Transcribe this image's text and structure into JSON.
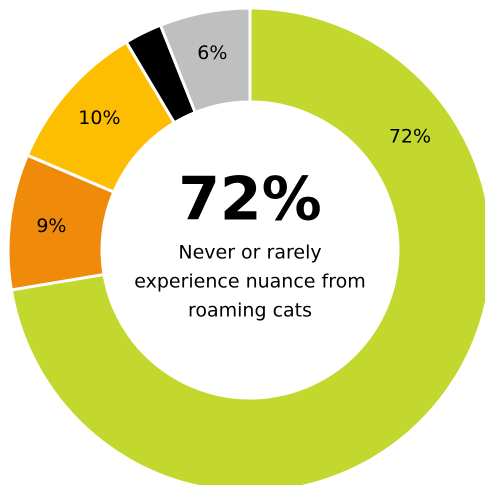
{
  "chart_data": {
    "type": "pie",
    "variant": "donut",
    "slices": [
      {
        "value": 72,
        "label": "72%",
        "color": "#c3d82e"
      },
      {
        "value": 9,
        "label": "9%",
        "color": "#f08a0b"
      },
      {
        "value": 10,
        "label": "10%",
        "color": "#fdbd00"
      },
      {
        "value": 2.5,
        "label": "",
        "color": "#000000"
      },
      {
        "value": 6,
        "label": "6%",
        "color": "#bfbfbf"
      }
    ],
    "start": "top",
    "direction": "clockwise",
    "center": {
      "headline": "72%",
      "caption_lines": [
        "Never or rarely",
        "experience nuance from",
        "roaming cats"
      ]
    }
  }
}
